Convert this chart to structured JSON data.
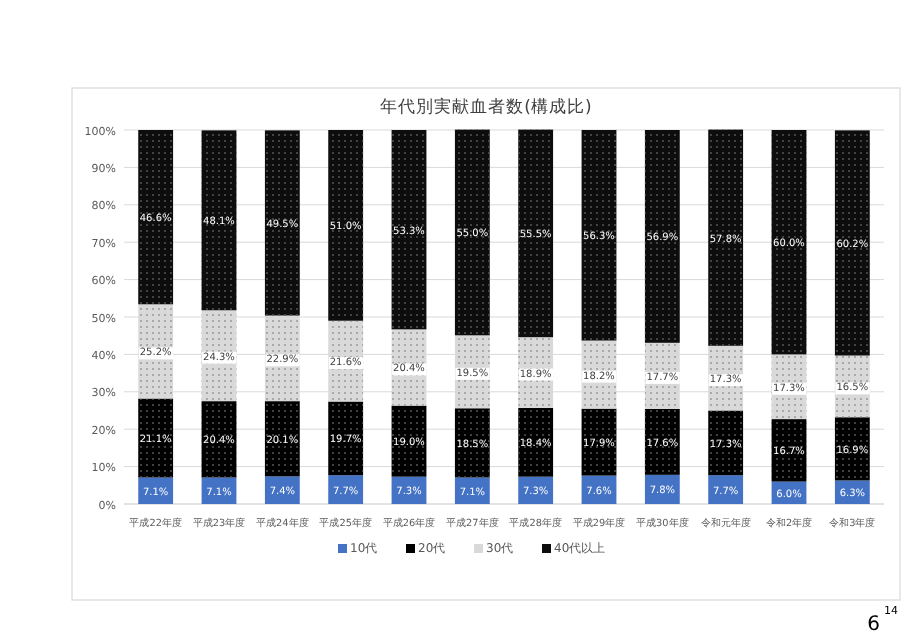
{
  "chart_data": {
    "type": "bar",
    "stacked": true,
    "title": "年代別実献血者数(構成比)",
    "categories": [
      "平成22年度",
      "平成23年度",
      "平成24年度",
      "平成25年度",
      "平成26年度",
      "平成27年度",
      "平成28年度",
      "平成29年度",
      "平成30年度",
      "令和元年度",
      "令和2年度",
      "令和3年度"
    ],
    "series": [
      {
        "name": "10代",
        "color": "#4472c4",
        "values": [
          7.1,
          7.1,
          7.4,
          7.7,
          7.3,
          7.1,
          7.3,
          7.6,
          7.8,
          7.7,
          6.0,
          6.3
        ],
        "value_labels": [
          "7.1%",
          "7.1%",
          "7.4%",
          "7.7%",
          "7.3%",
          "7.1%",
          "7.3%",
          "7.6%",
          "7.8%",
          "7.7%",
          "6.0%",
          "6.3%"
        ]
      },
      {
        "name": "20代",
        "color": "#000000",
        "values": [
          21.1,
          20.4,
          20.1,
          19.7,
          19.0,
          18.5,
          18.4,
          17.9,
          17.6,
          17.3,
          16.7,
          16.9
        ],
        "value_labels": [
          "21.1%",
          "20.4%",
          "20.1%",
          "19.7%",
          "19.0%",
          "18.5%",
          "18.4%",
          "17.9%",
          "17.6%",
          "17.3%",
          "16.7%",
          "16.9%"
        ]
      },
      {
        "name": "30代",
        "color": "#d9d9d9",
        "values": [
          25.2,
          24.3,
          22.9,
          21.6,
          20.4,
          19.5,
          18.9,
          18.2,
          17.7,
          17.3,
          17.3,
          16.5
        ],
        "value_labels": [
          "25.2%",
          "24.3%",
          "22.9%",
          "21.6%",
          "20.4%",
          "19.5%",
          "18.9%",
          "18.2%",
          "17.7%",
          "17.3%",
          "17.3%",
          "16.5%"
        ]
      },
      {
        "name": "40代以上",
        "color": "#0d0d0d",
        "values": [
          46.6,
          48.1,
          49.5,
          51.0,
          53.3,
          55.0,
          55.5,
          56.3,
          56.9,
          57.8,
          60.0,
          60.2
        ],
        "value_labels": [
          "46.6%",
          "48.1%",
          "49.5%",
          "51.0%",
          "53.3%",
          "55.0%",
          "55.5%",
          "56.3%",
          "56.9%",
          "57.8%",
          "60.0%",
          "60.2%"
        ]
      }
    ],
    "ylim": [
      0,
      100
    ],
    "yticks": [
      {
        "value": 0,
        "label": "0%"
      },
      {
        "value": 10,
        "label": "10%"
      },
      {
        "value": 20,
        "label": "20%"
      },
      {
        "value": 30,
        "label": "30%"
      },
      {
        "value": 40,
        "label": "40%"
      },
      {
        "value": 50,
        "label": "50%"
      },
      {
        "value": 60,
        "label": "60%"
      },
      {
        "value": 70,
        "label": "70%"
      },
      {
        "value": 80,
        "label": "80%"
      },
      {
        "value": 90,
        "label": "90%"
      },
      {
        "value": 100,
        "label": "100%"
      }
    ],
    "grid": "y",
    "legend": "bottom",
    "annotations": [
      "6",
      "14"
    ]
  }
}
